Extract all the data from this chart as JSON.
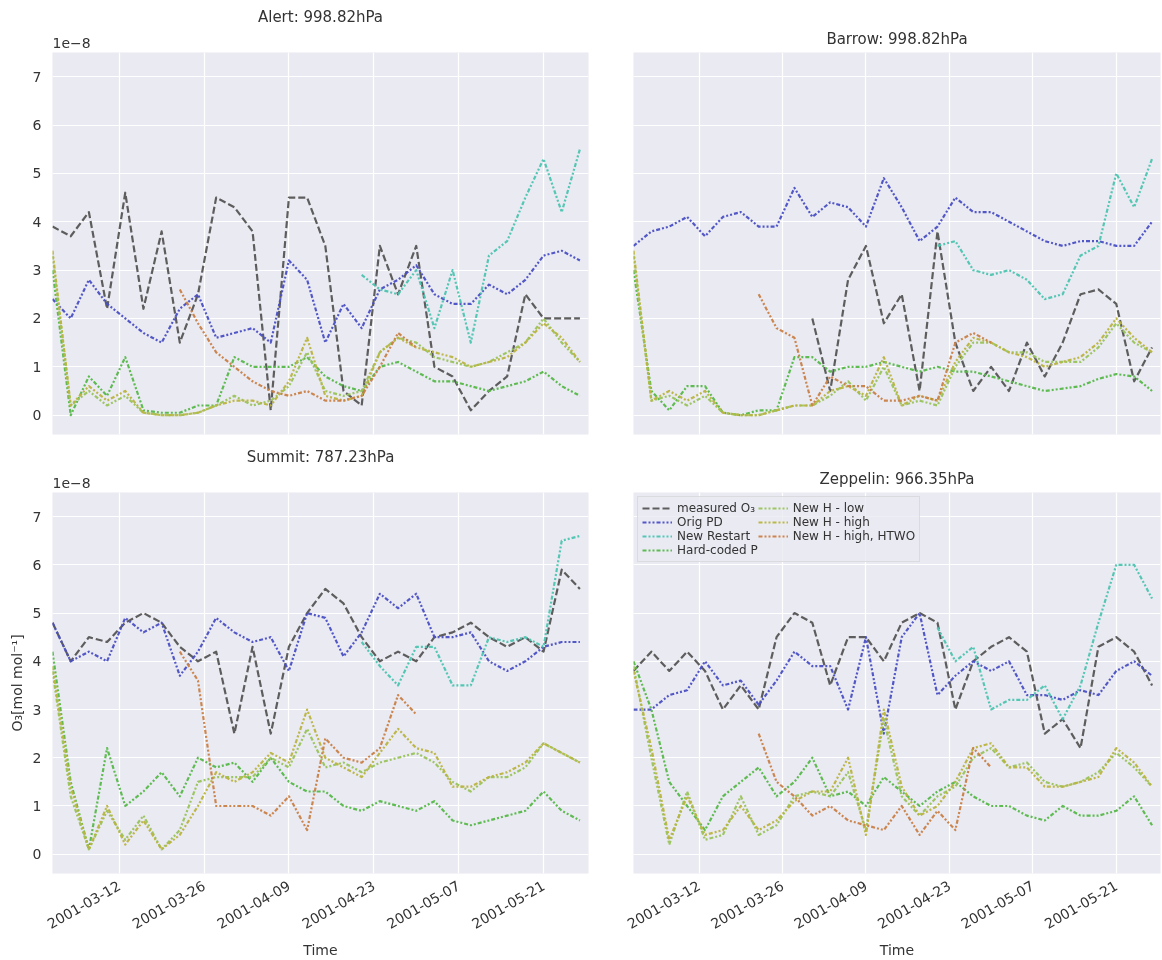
{
  "chart_data": [
    {
      "type": "line",
      "title": "Alert: 998.82hPa",
      "annotations": [
        "1e−8"
      ],
      "tick_labels": "y",
      "grid": true,
      "legend": false,
      "x": [
        "2001-03-01",
        "2001-03-04",
        "2001-03-07",
        "2001-03-10",
        "2001-03-13",
        "2001-03-16",
        "2001-03-19",
        "2001-03-22",
        "2001-03-25",
        "2001-03-28",
        "2001-03-31",
        "2001-04-03",
        "2001-04-06",
        "2001-04-09",
        "2001-04-12",
        "2001-04-15",
        "2001-04-18",
        "2001-04-21",
        "2001-04-24",
        "2001-04-27",
        "2001-04-30",
        "2001-05-03",
        "2001-05-06",
        "2001-05-09",
        "2001-05-12",
        "2001-05-15",
        "2001-05-18",
        "2001-05-21",
        "2001-05-24",
        "2001-05-27"
      ],
      "xlim": [
        "2001-03-01",
        "2001-05-28T10:00"
      ],
      "xticks": [
        "2001-03-12",
        "2001-03-26",
        "2001-04-09",
        "2001-04-23",
        "2001-05-07",
        "2001-05-21"
      ],
      "ylim": [
        -0.4,
        7.5
      ],
      "yticks": [
        0,
        1,
        2,
        3,
        4,
        5,
        6,
        7
      ],
      "series": [
        {
          "color": "#555555",
          "line_style": "dashed",
          "values": [
            3.9,
            3.7,
            4.2,
            2.2,
            4.6,
            2.2,
            3.8,
            1.5,
            2.5,
            4.5,
            4.3,
            3.8,
            0.1,
            4.5,
            4.5,
            3.5,
            0.5,
            0.2,
            3.5,
            2.5,
            3.5,
            1.0,
            0.8,
            0.1,
            0.5,
            0.8,
            2.5,
            2.0,
            2.0,
            2.0
          ]
        },
        {
          "color": "#4a4fc4",
          "line_style": "dotted",
          "values": [
            2.4,
            2.0,
            2.8,
            2.3,
            2.0,
            1.7,
            1.5,
            2.2,
            2.5,
            1.6,
            1.7,
            1.8,
            1.5,
            3.2,
            2.8,
            1.5,
            2.3,
            1.8,
            2.6,
            2.8,
            3.1,
            2.5,
            2.3,
            2.3,
            2.7,
            2.5,
            2.8,
            3.3,
            3.4,
            3.2
          ]
        },
        {
          "color": "#4cc4b0",
          "line_style": "dotted",
          "values": [
            null,
            null,
            null,
            null,
            null,
            null,
            null,
            null,
            null,
            null,
            null,
            null,
            null,
            null,
            null,
            null,
            null,
            2.9,
            2.6,
            2.5,
            3.0,
            1.8,
            3.0,
            1.5,
            3.3,
            3.6,
            4.5,
            5.3,
            4.2,
            5.5
          ]
        },
        {
          "color": "#55b848",
          "line_style": "dotted",
          "values": [
            3.0,
            0.0,
            0.8,
            0.4,
            1.2,
            0.1,
            0.05,
            0.05,
            0.2,
            0.2,
            1.2,
            1.0,
            1.0,
            1.0,
            1.2,
            0.8,
            0.6,
            0.5,
            1.0,
            1.1,
            0.9,
            0.7,
            0.7,
            0.6,
            0.5,
            0.6,
            0.7,
            0.9,
            0.6,
            0.4
          ]
        },
        {
          "color": "#99c35a",
          "line_style": "dotted",
          "values": [
            3.3,
            0.2,
            0.5,
            0.2,
            0.4,
            0.05,
            0.0,
            0.0,
            0.05,
            0.2,
            0.4,
            0.2,
            0.3,
            0.6,
            1.3,
            0.5,
            0.4,
            0.5,
            1.3,
            1.6,
            1.5,
            1.2,
            1.1,
            1.0,
            1.1,
            1.3,
            1.5,
            2.0,
            1.5,
            1.1
          ]
        },
        {
          "color": "#b9b43e",
          "line_style": "dotted",
          "values": [
            3.4,
            0.2,
            0.6,
            0.3,
            0.5,
            0.05,
            0.0,
            0.0,
            0.05,
            0.2,
            0.3,
            0.3,
            0.2,
            0.7,
            1.6,
            0.4,
            0.3,
            0.4,
            1.3,
            1.6,
            1.4,
            1.3,
            1.2,
            1.0,
            1.1,
            1.2,
            1.5,
            1.9,
            1.6,
            1.1
          ]
        },
        {
          "color": "#c97f46",
          "line_style": "dotted",
          "values": [
            null,
            null,
            null,
            null,
            null,
            null,
            null,
            2.6,
            1.9,
            1.3,
            1.0,
            0.7,
            0.5,
            0.4,
            0.5,
            0.3,
            0.3,
            0.4,
            1.0,
            1.7,
            1.4,
            null,
            null,
            null,
            null,
            null,
            null,
            null,
            null,
            null
          ]
        }
      ]
    },
    {
      "type": "line",
      "title": "Barrow: 998.82hPa",
      "tick_labels": false,
      "grid": true,
      "legend": false,
      "x": [
        "2001-03-01",
        "2001-03-04",
        "2001-03-07",
        "2001-03-10",
        "2001-03-13",
        "2001-03-16",
        "2001-03-19",
        "2001-03-22",
        "2001-03-25",
        "2001-03-28",
        "2001-03-31",
        "2001-04-03",
        "2001-04-06",
        "2001-04-09",
        "2001-04-12",
        "2001-04-15",
        "2001-04-18",
        "2001-04-21",
        "2001-04-24",
        "2001-04-27",
        "2001-04-30",
        "2001-05-03",
        "2001-05-06",
        "2001-05-09",
        "2001-05-12",
        "2001-05-15",
        "2001-05-18",
        "2001-05-21",
        "2001-05-24",
        "2001-05-27"
      ],
      "xlim": [
        "2001-03-01",
        "2001-05-28T10:00"
      ],
      "xticks": [
        "2001-03-12",
        "2001-03-26",
        "2001-04-09",
        "2001-04-23",
        "2001-05-07",
        "2001-05-21"
      ],
      "ylim": [
        -0.4,
        7.5
      ],
      "yticks": [
        0,
        1,
        2,
        3,
        4,
        5,
        6,
        7
      ],
      "series": [
        {
          "color": "#555555",
          "line_style": "dashed",
          "values": [
            null,
            null,
            null,
            null,
            null,
            null,
            null,
            null,
            null,
            null,
            2.0,
            0.5,
            2.8,
            3.5,
            1.9,
            2.5,
            0.5,
            3.8,
            1.5,
            0.5,
            1.0,
            0.5,
            1.5,
            0.8,
            1.5,
            2.5,
            2.6,
            2.3,
            0.7,
            1.4
          ]
        },
        {
          "color": "#4a4fc4",
          "line_style": "dotted",
          "values": [
            3.5,
            3.8,
            3.9,
            4.1,
            3.7,
            4.1,
            4.2,
            3.9,
            3.9,
            4.7,
            4.1,
            4.4,
            4.3,
            3.9,
            4.9,
            4.3,
            3.6,
            3.9,
            4.5,
            4.2,
            4.2,
            4.0,
            3.8,
            3.6,
            3.5,
            3.6,
            3.6,
            3.5,
            3.5,
            4.0
          ]
        },
        {
          "color": "#4cc4b0",
          "line_style": "dotted",
          "values": [
            null,
            null,
            null,
            null,
            null,
            null,
            null,
            null,
            null,
            null,
            null,
            null,
            null,
            null,
            null,
            null,
            null,
            3.5,
            3.6,
            3.0,
            2.9,
            3.0,
            2.8,
            2.4,
            2.5,
            3.3,
            3.5,
            5.0,
            4.3,
            5.3
          ]
        },
        {
          "color": "#55b848",
          "line_style": "dotted",
          "values": [
            3.0,
            0.5,
            0.1,
            0.6,
            0.6,
            0.05,
            0.0,
            0.1,
            0.1,
            1.2,
            1.2,
            0.9,
            1.0,
            1.0,
            1.1,
            1.0,
            0.9,
            1.0,
            0.9,
            0.9,
            0.8,
            0.7,
            0.6,
            0.5,
            0.55,
            0.6,
            0.75,
            0.85,
            0.8,
            0.5
          ]
        },
        {
          "color": "#99c35a",
          "line_style": "dotted",
          "values": [
            3.3,
            0.3,
            0.4,
            0.2,
            0.4,
            0.05,
            0.0,
            0.0,
            0.1,
            0.2,
            0.2,
            0.4,
            0.7,
            0.3,
            1.0,
            0.2,
            0.3,
            0.2,
            1.0,
            1.5,
            1.5,
            1.3,
            1.3,
            1.1,
            1.1,
            1.1,
            1.4,
            1.9,
            1.5,
            1.3
          ]
        },
        {
          "color": "#b9b43e",
          "line_style": "dotted",
          "values": [
            3.4,
            0.3,
            0.5,
            0.3,
            0.5,
            0.05,
            0.0,
            0.0,
            0.1,
            0.2,
            0.2,
            0.5,
            0.6,
            0.4,
            1.2,
            0.2,
            0.4,
            0.3,
            1.1,
            1.6,
            1.5,
            1.3,
            1.2,
            1.0,
            1.1,
            1.2,
            1.5,
            2.0,
            1.6,
            1.3
          ]
        },
        {
          "color": "#c97f46",
          "line_style": "dotted",
          "values": [
            null,
            null,
            null,
            null,
            null,
            null,
            null,
            2.5,
            1.8,
            1.6,
            0.2,
            0.8,
            0.6,
            0.6,
            0.3,
            0.3,
            0.4,
            0.3,
            1.5,
            1.7,
            1.5,
            null,
            null,
            null,
            null,
            null,
            null,
            null,
            null,
            null
          ]
        }
      ]
    },
    {
      "type": "line",
      "title": "Summit: 787.23hPa",
      "xlabel": "Time",
      "ylabel": "O₃[mol mol⁻¹]",
      "annotations": [
        "1e−8"
      ],
      "grid": true,
      "legend": false,
      "x": [
        "2001-03-01",
        "2001-03-04",
        "2001-03-07",
        "2001-03-10",
        "2001-03-13",
        "2001-03-16",
        "2001-03-19",
        "2001-03-22",
        "2001-03-25",
        "2001-03-28",
        "2001-03-31",
        "2001-04-03",
        "2001-04-06",
        "2001-04-09",
        "2001-04-12",
        "2001-04-15",
        "2001-04-18",
        "2001-04-21",
        "2001-04-24",
        "2001-04-27",
        "2001-04-30",
        "2001-05-03",
        "2001-05-06",
        "2001-05-09",
        "2001-05-12",
        "2001-05-15",
        "2001-05-18",
        "2001-05-21",
        "2001-05-24",
        "2001-05-27"
      ],
      "xlim": [
        "2001-03-01",
        "2001-05-28T10:00"
      ],
      "xticks": [
        "2001-03-12",
        "2001-03-26",
        "2001-04-09",
        "2001-04-23",
        "2001-05-07",
        "2001-05-21"
      ],
      "ylim": [
        -0.4,
        7.5
      ],
      "yticks": [
        0,
        1,
        2,
        3,
        4,
        5,
        6,
        7
      ],
      "series": [
        {
          "color": "#555555",
          "line_style": "dashed",
          "values": [
            4.8,
            4.0,
            4.5,
            4.4,
            4.8,
            5.0,
            4.8,
            4.3,
            4.0,
            4.2,
            2.5,
            4.3,
            2.5,
            4.3,
            5.0,
            5.5,
            5.2,
            4.5,
            4.0,
            4.2,
            4.0,
            4.5,
            4.6,
            4.8,
            4.5,
            4.3,
            4.5,
            4.2,
            5.9,
            5.5
          ]
        },
        {
          "color": "#4a4fc4",
          "line_style": "dotted",
          "values": [
            4.8,
            4.0,
            4.2,
            4.0,
            4.9,
            4.6,
            4.8,
            3.7,
            4.2,
            4.9,
            4.6,
            4.4,
            4.5,
            3.8,
            5.0,
            4.9,
            4.1,
            4.6,
            5.4,
            5.1,
            5.4,
            4.5,
            4.5,
            4.6,
            4.0,
            3.8,
            4.0,
            4.3,
            4.4,
            4.4
          ]
        },
        {
          "color": "#4cc4b0",
          "line_style": "dotted",
          "values": [
            null,
            null,
            null,
            null,
            null,
            null,
            null,
            null,
            null,
            null,
            null,
            null,
            null,
            null,
            null,
            null,
            null,
            4.4,
            3.9,
            3.5,
            4.3,
            4.3,
            3.5,
            3.5,
            4.5,
            4.4,
            4.5,
            4.3,
            6.5,
            6.6
          ]
        },
        {
          "color": "#55b848",
          "line_style": "dotted",
          "values": [
            4.2,
            1.5,
            0.1,
            2.2,
            1.0,
            1.3,
            1.7,
            1.2,
            2.0,
            1.8,
            1.9,
            1.5,
            2.0,
            1.5,
            1.3,
            1.3,
            1.0,
            0.9,
            1.1,
            1.0,
            0.9,
            1.1,
            0.7,
            0.6,
            0.7,
            0.8,
            0.9,
            1.3,
            0.9,
            0.7
          ]
        },
        {
          "color": "#99c35a",
          "line_style": "dotted",
          "values": [
            3.8,
            1.2,
            0.1,
            0.9,
            0.3,
            0.8,
            0.1,
            0.5,
            1.5,
            1.6,
            1.6,
            1.6,
            2.0,
            1.8,
            2.6,
            1.8,
            1.9,
            1.7,
            1.9,
            2.0,
            2.1,
            1.9,
            1.5,
            1.3,
            1.6,
            1.6,
            1.8,
            2.3,
            2.1,
            1.9
          ]
        },
        {
          "color": "#b9b43e",
          "line_style": "dotted",
          "values": [
            3.9,
            1.4,
            0.1,
            1.0,
            0.2,
            0.7,
            0.1,
            0.4,
            1.0,
            1.7,
            1.5,
            1.7,
            2.1,
            1.9,
            3.0,
            2.0,
            1.8,
            1.6,
            2.1,
            2.6,
            2.2,
            2.1,
            1.4,
            1.4,
            1.6,
            1.7,
            1.9,
            2.3,
            2.1,
            1.9
          ]
        },
        {
          "color": "#c97f46",
          "line_style": "dotted",
          "values": [
            null,
            null,
            null,
            null,
            null,
            null,
            null,
            4.2,
            3.6,
            1.0,
            1.0,
            1.0,
            0.8,
            1.2,
            0.5,
            2.4,
            2.0,
            1.9,
            2.2,
            3.3,
            2.9,
            null,
            null,
            null,
            null,
            null,
            null,
            null,
            null,
            null
          ]
        }
      ]
    },
    {
      "type": "line",
      "title": "Zeppelin: 966.35hPa",
      "xlabel": "Time",
      "tick_labels": "x",
      "grid": true,
      "legend": "top left",
      "x": [
        "2001-03-01",
        "2001-03-04",
        "2001-03-07",
        "2001-03-10",
        "2001-03-13",
        "2001-03-16",
        "2001-03-19",
        "2001-03-22",
        "2001-03-25",
        "2001-03-28",
        "2001-03-31",
        "2001-04-03",
        "2001-04-06",
        "2001-04-09",
        "2001-04-12",
        "2001-04-15",
        "2001-04-18",
        "2001-04-21",
        "2001-04-24",
        "2001-04-27",
        "2001-04-30",
        "2001-05-03",
        "2001-05-06",
        "2001-05-09",
        "2001-05-12",
        "2001-05-15",
        "2001-05-18",
        "2001-05-21",
        "2001-05-24",
        "2001-05-27"
      ],
      "xlim": [
        "2001-03-01",
        "2001-05-28T10:00"
      ],
      "xticks": [
        "2001-03-12",
        "2001-03-26",
        "2001-04-09",
        "2001-04-23",
        "2001-05-07",
        "2001-05-21"
      ],
      "ylim": [
        -0.4,
        7.5
      ],
      "yticks": [
        0,
        1,
        2,
        3,
        4,
        5,
        6,
        7
      ],
      "series": [
        {
          "name": "measured O₃",
          "color": "#555555",
          "line_style": "dashed",
          "values": [
            3.8,
            4.2,
            3.8,
            4.2,
            3.8,
            3.0,
            3.5,
            3.0,
            4.5,
            5.0,
            4.8,
            3.5,
            4.5,
            4.5,
            4.0,
            4.8,
            5.0,
            4.8,
            3.0,
            4.0,
            4.3,
            4.5,
            4.2,
            2.5,
            2.8,
            2.2,
            4.3,
            4.5,
            4.2,
            3.5
          ]
        },
        {
          "name": "Orig PD",
          "color": "#4a4fc4",
          "line_style": "dotted",
          "values": [
            3.0,
            3.0,
            3.3,
            3.4,
            4.0,
            3.5,
            3.6,
            3.1,
            3.6,
            4.2,
            3.9,
            3.9,
            3.0,
            4.5,
            2.5,
            4.5,
            5.0,
            3.3,
            3.7,
            4.0,
            3.8,
            4.0,
            3.3,
            3.3,
            3.2,
            3.4,
            3.3,
            3.8,
            4.0,
            3.7
          ]
        },
        {
          "name": "New Restart",
          "color": "#4cc4b0",
          "line_style": "dotted",
          "values": [
            null,
            null,
            null,
            null,
            null,
            null,
            null,
            null,
            null,
            null,
            null,
            null,
            null,
            null,
            null,
            null,
            null,
            4.7,
            4.0,
            4.3,
            3.0,
            3.2,
            3.2,
            3.5,
            2.8,
            3.5,
            4.8,
            6.0,
            6.0,
            5.3
          ]
        },
        {
          "name": "Hard-coded P",
          "color": "#55b848",
          "line_style": "dotted",
          "values": [
            4.0,
            3.0,
            1.5,
            1.0,
            0.5,
            1.2,
            1.5,
            1.8,
            1.2,
            1.5,
            2.0,
            1.2,
            1.3,
            1.0,
            1.6,
            1.3,
            1.0,
            1.3,
            1.5,
            1.2,
            1.0,
            1.0,
            0.8,
            0.7,
            1.0,
            0.8,
            0.8,
            0.9,
            1.2,
            0.6
          ]
        },
        {
          "name": "New H - low",
          "color": "#99c35a",
          "line_style": "dotted",
          "values": [
            3.9,
            2.0,
            0.2,
            1.3,
            0.3,
            0.4,
            1.2,
            0.4,
            0.6,
            1.2,
            1.3,
            1.2,
            1.7,
            0.5,
            2.8,
            1.2,
            0.8,
            1.2,
            1.4,
            2.0,
            2.2,
            1.8,
            1.9,
            1.5,
            1.4,
            1.5,
            1.7,
            2.1,
            1.8,
            1.4
          ]
        },
        {
          "name": "New H - high",
          "color": "#b9b43e",
          "line_style": "dotted",
          "values": [
            3.8,
            2.2,
            0.3,
            1.2,
            0.4,
            0.5,
            1.0,
            0.5,
            0.7,
            1.1,
            1.3,
            1.3,
            2.0,
            0.4,
            3.0,
            1.4,
            0.8,
            1.0,
            1.5,
            2.2,
            2.3,
            1.8,
            1.8,
            1.4,
            1.4,
            1.5,
            1.6,
            2.2,
            1.9,
            1.4
          ]
        },
        {
          "name": "New H - high, HTWO",
          "color": "#c97f46",
          "line_style": "dotted",
          "values": [
            null,
            null,
            null,
            null,
            null,
            null,
            null,
            2.5,
            1.5,
            1.2,
            0.8,
            1.0,
            0.7,
            0.6,
            0.5,
            1.0,
            0.4,
            0.9,
            0.5,
            2.2,
            1.8,
            null,
            null,
            null,
            null,
            null,
            null,
            null,
            null,
            null
          ]
        }
      ]
    }
  ]
}
